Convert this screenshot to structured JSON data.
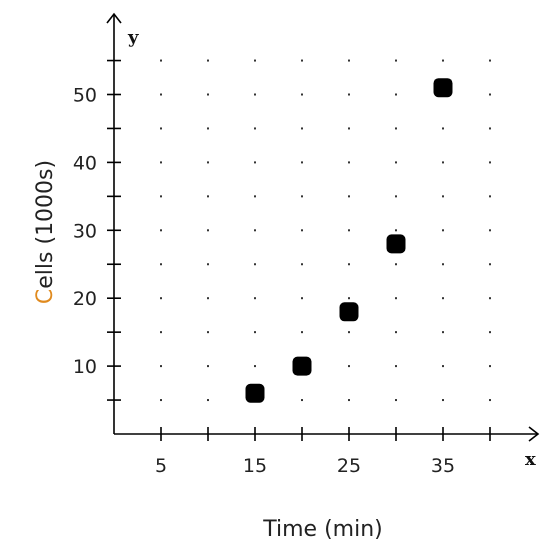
{
  "chart_data": {
    "type": "scatter",
    "xlabel": "Time (min)",
    "ylabel": "Cells (1000s)",
    "x_axis_name": "x",
    "y_axis_name": "y",
    "xlim": [
      0,
      40
    ],
    "ylim": [
      0,
      55
    ],
    "x_tick_labels": [
      "5",
      "15",
      "25",
      "35"
    ],
    "y_tick_labels": [
      "10",
      "20",
      "30",
      "40",
      "50"
    ],
    "grid": "dotted",
    "legend": "none",
    "colors": {
      "points": "#000000",
      "axes": "#000000",
      "ylabel_accent": "#e08a1e"
    },
    "series": [
      {
        "x": [
          15,
          20,
          25,
          30,
          35
        ],
        "y": [
          6,
          10,
          18,
          28,
          51
        ]
      }
    ]
  }
}
